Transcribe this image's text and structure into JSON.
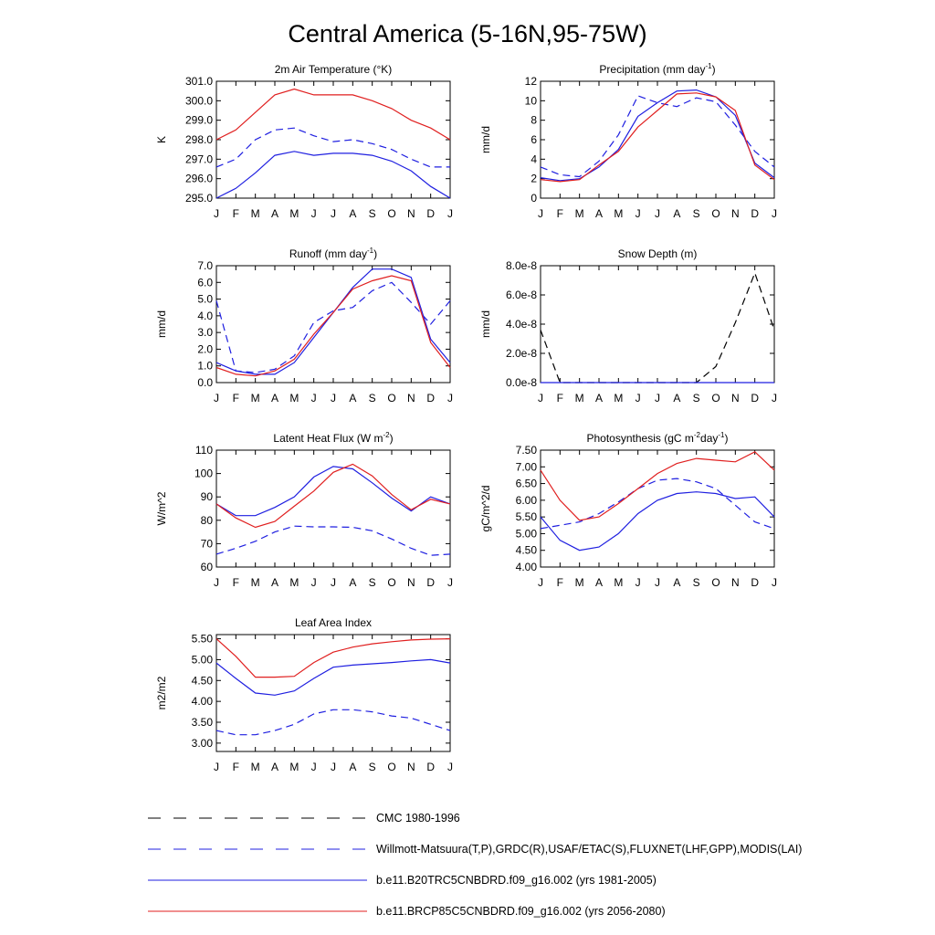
{
  "page_title": "Central America (5-16N,95-75W)",
  "colors": {
    "obs_cmc": "#000000",
    "obs_wm": "#1f1fe0",
    "model_hist": "#1f1fe0",
    "model_future": "#e01f1f"
  },
  "months": [
    "J",
    "F",
    "M",
    "A",
    "M",
    "J",
    "J",
    "A",
    "S",
    "O",
    "N",
    "D",
    "J"
  ],
  "legend": [
    {
      "label": "CMC 1980-1996",
      "color": "#000000",
      "dashed": true
    },
    {
      "label": "Willmott-Matsuura(T,P),GRDC(R),USAF/ETAC(S),FLUXNET(LHF,GPP),MODIS(LAI)",
      "color": "#1f1fe0",
      "dashed": true
    },
    {
      "label": "b.e11.B20TRC5CNBDRD.f09_g16.002 (yrs 1981-2005)",
      "color": "#1f1fe0",
      "dashed": false
    },
    {
      "label": "b.e11.BRCP85C5CNBDRD.f09_g16.002 (yrs 2056-2080)",
      "color": "#e01f1f",
      "dashed": false
    }
  ],
  "chart_data": [
    {
      "type": "line",
      "title": "2m Air Temperature (°K)",
      "ylabel": "K",
      "ylim": [
        295.0,
        301.0
      ],
      "yticks": [
        "295.0",
        "296.0",
        "297.0",
        "298.0",
        "299.0",
        "300.0",
        "301.0"
      ],
      "series": [
        {
          "name": "Willmott-Matsuura(T,P),GRDC(R),USAF/ETAC(S),FLUXNET(LHF,GPP),MODIS(LAI)",
          "style": "obs_wm",
          "values": [
            296.6,
            297.0,
            298.0,
            298.5,
            298.6,
            298.2,
            297.9,
            298.0,
            297.8,
            297.5,
            297.0,
            296.6,
            296.6
          ]
        },
        {
          "name": "b.e11.B20TRC5CNBDRD.f09_g16.002 (yrs 1981-2005)",
          "style": "model_hist",
          "values": [
            295.0,
            295.5,
            296.3,
            297.2,
            297.4,
            297.2,
            297.3,
            297.3,
            297.2,
            296.9,
            296.4,
            295.6,
            295.0
          ]
        },
        {
          "name": "b.e11.BRCP85C5CNBDRD.f09_g16.002 (yrs 2056-2080)",
          "style": "model_future",
          "values": [
            298.0,
            298.5,
            299.4,
            300.3,
            300.6,
            300.3,
            300.3,
            300.3,
            300.0,
            299.6,
            299.0,
            298.6,
            298.0
          ]
        }
      ]
    },
    {
      "type": "line",
      "title": "Precipitation (mm day-1)",
      "ylabel": "mm/d",
      "ylim": [
        0,
        12
      ],
      "yticks": [
        "0",
        "2",
        "4",
        "6",
        "8",
        "10",
        "12"
      ],
      "series": [
        {
          "name": "Willmott-Matsuura(T,P),GRDC(R),USAF/ETAC(S),FLUXNET(LHF,GPP),MODIS(LAI)",
          "style": "obs_wm",
          "values": [
            3.2,
            2.4,
            2.2,
            3.8,
            6.5,
            10.5,
            9.8,
            9.4,
            10.3,
            9.9,
            7.5,
            4.8,
            3.2
          ]
        },
        {
          "name": "b.e11.B20TRC5CNBDRD.f09_g16.002 (yrs 1981-2005)",
          "style": "model_hist",
          "values": [
            2.1,
            1.8,
            2.0,
            3.2,
            5.0,
            8.4,
            9.8,
            11.0,
            11.1,
            10.4,
            8.5,
            3.6,
            2.1
          ]
        },
        {
          "name": "b.e11.BRCP85C5CNBDRD.f09_g16.002 (yrs 2056-2080)",
          "style": "model_future",
          "values": [
            1.9,
            1.7,
            1.9,
            3.4,
            4.8,
            7.3,
            9.0,
            10.7,
            10.8,
            10.4,
            9.0,
            3.4,
            1.9
          ]
        }
      ]
    },
    {
      "type": "line",
      "title": "Runoff (mm day-1)",
      "ylabel": "mm/d",
      "ylim": [
        0,
        7
      ],
      "yticks": [
        "0.0",
        "1.0",
        "2.0",
        "3.0",
        "4.0",
        "5.0",
        "6.0",
        "7.0"
      ],
      "series": [
        {
          "name": "Willmott-Matsuura(T,P),GRDC(R),USAF/ETAC(S),FLUXNET(LHF,GPP),MODIS(LAI)",
          "style": "obs_wm",
          "values": [
            4.9,
            0.7,
            0.6,
            0.8,
            1.6,
            3.6,
            4.3,
            4.5,
            5.5,
            6.0,
            4.8,
            3.5,
            4.9
          ]
        },
        {
          "name": "b.e11.B20TRC5CNBDRD.f09_g16.002 (yrs 1981-2005)",
          "style": "model_hist",
          "values": [
            1.2,
            0.7,
            0.5,
            0.5,
            1.2,
            2.7,
            4.2,
            5.7,
            6.8,
            6.8,
            6.3,
            2.6,
            1.2
          ]
        },
        {
          "name": "b.e11.BRCP85C5CNBDRD.f09_g16.002 (yrs 2056-2080)",
          "style": "model_future",
          "values": [
            0.9,
            0.5,
            0.4,
            0.7,
            1.4,
            2.9,
            4.2,
            5.6,
            6.1,
            6.4,
            6.1,
            2.4,
            0.9
          ]
        }
      ]
    },
    {
      "type": "line",
      "title": "Snow Depth (m)",
      "ylabel": "mm/d",
      "ylim": [
        0,
        8e-08
      ],
      "yticks": [
        "0.0e-8",
        "2.0e-8",
        "4.0e-8",
        "6.0e-8",
        "8.0e-8"
      ],
      "series": [
        {
          "name": "CMC 1980-1996",
          "style": "obs_cmc",
          "values": [
            3.6e-08,
            0,
            0,
            0,
            0,
            0,
            0,
            0,
            0,
            1.1e-08,
            4.1e-08,
            7.5e-08,
            3.6e-08
          ]
        },
        {
          "name": "b.e11.B20TRC5CNBDRD.f09_g16.002 (yrs 1981-2005)",
          "style": "model_hist",
          "values": [
            0,
            0,
            0,
            0,
            0,
            0,
            0,
            0,
            0,
            0,
            0,
            0,
            0
          ]
        }
      ]
    },
    {
      "type": "line",
      "title": "Latent Heat Flux (W m-2)",
      "ylabel": "W/m^2",
      "ylim": [
        60,
        110
      ],
      "yticks": [
        "60",
        "70",
        "80",
        "90",
        "100",
        "110"
      ],
      "series": [
        {
          "name": "Willmott-Matsuura(T,P),GRDC(R),USAF/ETAC(S),FLUXNET(LHF,GPP),MODIS(LAI)",
          "style": "obs_wm",
          "values": [
            65.5,
            68,
            71,
            75,
            77.5,
            77.2,
            77.2,
            77,
            75.5,
            72,
            68,
            65,
            65.5
          ]
        },
        {
          "name": "b.e11.B20TRC5CNBDRD.f09_g16.002 (yrs 1981-2005)",
          "style": "model_hist",
          "values": [
            87,
            82,
            82,
            85.5,
            90,
            98.5,
            103,
            102,
            96,
            89.5,
            84,
            90,
            87
          ]
        },
        {
          "name": "b.e11.BRCP85C5CNBDRD.f09_g16.002 (yrs 2056-2080)",
          "style": "model_future",
          "values": [
            87,
            81,
            77,
            79.5,
            86,
            92.5,
            100.5,
            104,
            99,
            91,
            84.5,
            89,
            87
          ]
        }
      ]
    },
    {
      "type": "line",
      "title": "Photosynthesis (gC m-2day-1)",
      "ylabel": "gC/m^2/d",
      "ylim": [
        4.0,
        7.5
      ],
      "yticks": [
        "4.00",
        "4.50",
        "5.00",
        "5.50",
        "6.00",
        "6.50",
        "7.00",
        "7.50"
      ],
      "series": [
        {
          "name": "Willmott-Matsuura(T,P),GRDC(R),USAF/ETAC(S),FLUXNET(LHF,GPP),MODIS(LAI)",
          "style": "obs_wm",
          "values": [
            5.15,
            5.25,
            5.35,
            5.6,
            5.95,
            6.35,
            6.6,
            6.65,
            6.55,
            6.35,
            5.85,
            5.35,
            5.15
          ]
        },
        {
          "name": "b.e11.B20TRC5CNBDRD.f09_g16.002 (yrs 1981-2005)",
          "style": "model_hist",
          "values": [
            5.5,
            4.8,
            4.5,
            4.6,
            5.0,
            5.6,
            6.0,
            6.2,
            6.25,
            6.2,
            6.05,
            6.1,
            5.5
          ]
        },
        {
          "name": "b.e11.BRCP85C5CNBDRD.f09_g16.002 (yrs 2056-2080)",
          "style": "model_future",
          "values": [
            6.9,
            6.0,
            5.4,
            5.5,
            5.9,
            6.35,
            6.8,
            7.1,
            7.25,
            7.2,
            7.15,
            7.45,
            6.9
          ]
        }
      ]
    },
    {
      "type": "line",
      "title": "Leaf Area Index",
      "ylabel": "m2/m2",
      "ylim": [
        2.8,
        5.6
      ],
      "yticks": [
        "3.00",
        "3.50",
        "4.00",
        "4.50",
        "5.00",
        "5.50"
      ],
      "series": [
        {
          "name": "Willmott-Matsuura(T,P),GRDC(R),USAF/ETAC(S),FLUXNET(LHF,GPP),MODIS(LAI)",
          "style": "obs_wm",
          "values": [
            3.3,
            3.2,
            3.2,
            3.3,
            3.45,
            3.7,
            3.8,
            3.8,
            3.75,
            3.65,
            3.6,
            3.45,
            3.3
          ]
        },
        {
          "name": "b.e11.B20TRC5CNBDRD.f09_g16.002 (yrs 1981-2005)",
          "style": "model_hist",
          "values": [
            4.92,
            4.55,
            4.2,
            4.15,
            4.25,
            4.55,
            4.82,
            4.87,
            4.9,
            4.93,
            4.97,
            5.0,
            4.92
          ]
        },
        {
          "name": "b.e11.BRCP85C5CNBDRD.f09_g16.002 (yrs 2056-2080)",
          "style": "model_future",
          "values": [
            5.5,
            5.08,
            4.58,
            4.58,
            4.6,
            4.93,
            5.18,
            5.3,
            5.38,
            5.43,
            5.47,
            5.49,
            5.5
          ]
        }
      ]
    }
  ]
}
